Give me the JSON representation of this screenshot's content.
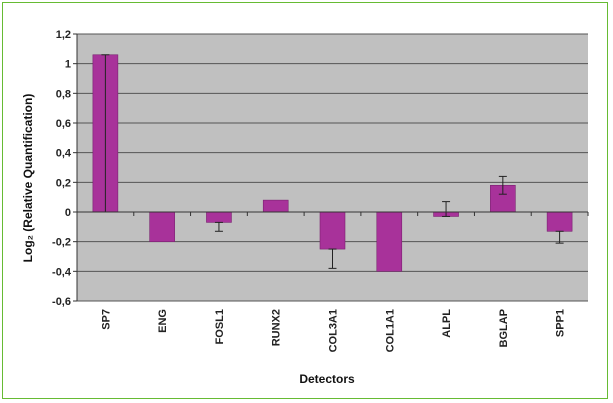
{
  "chart_data": {
    "type": "bar",
    "title": "",
    "xlabel": "Detectors",
    "ylabel": "Log₂ (Relative Quantification)",
    "categories": [
      "SP7",
      "ENG",
      "FOSL1",
      "RUNX2",
      "COL3A1",
      "COL1A1",
      "ALPL",
      "BGLAP",
      "SPP1"
    ],
    "values": [
      1.06,
      -0.2,
      -0.07,
      0.08,
      -0.25,
      -0.4,
      -0.03,
      0.18,
      -0.13
    ],
    "error_high": [
      0.0,
      -0.2,
      -0.07,
      0.08,
      -0.25,
      -0.4,
      0.07,
      0.24,
      -0.13
    ],
    "error_low": [
      1.06,
      -0.2,
      -0.13,
      0.08,
      -0.38,
      -0.4,
      -0.03,
      0.12,
      -0.21
    ],
    "ylim": [
      -0.6,
      1.2
    ],
    "yticks": [
      "1,2",
      "1",
      "0,8",
      "0,6",
      "0,4",
      "0,2",
      "0",
      "-0,2",
      "-0,4",
      "-0,6"
    ],
    "grid": true,
    "colors": {
      "bar": "#a8329a",
      "plot_background": "#c0c0c0",
      "frame_border": "#66bb33",
      "gridline": "#555555"
    }
  }
}
